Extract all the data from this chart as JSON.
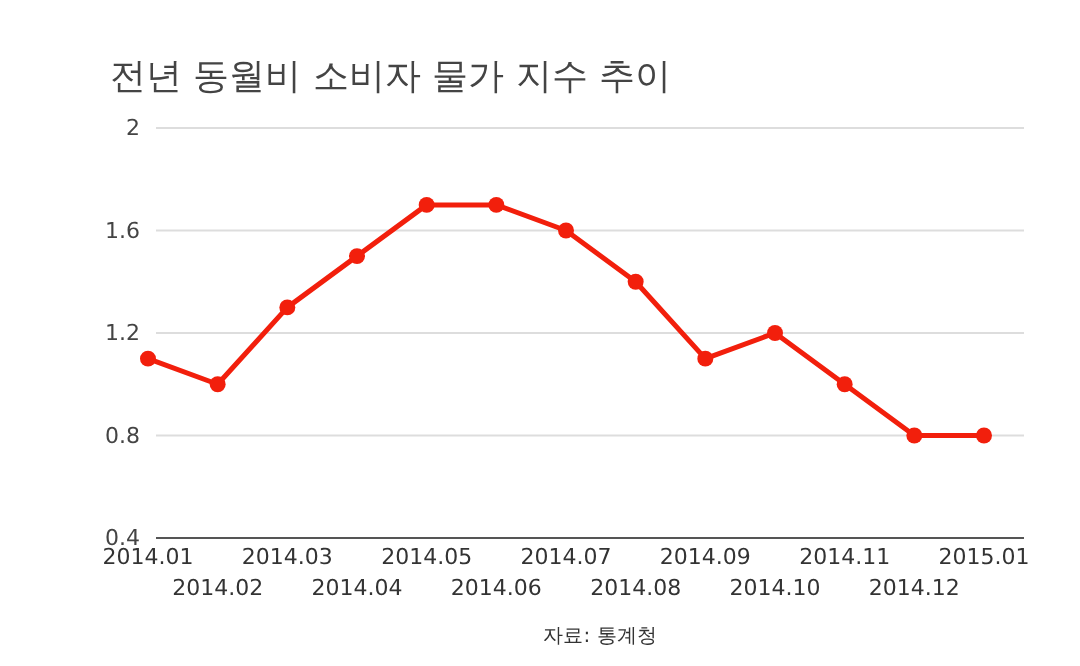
{
  "chart_data": {
    "type": "line",
    "title": "전년 동월비 소비자 물가 지수 추이",
    "categories": [
      "2014.01",
      "2014.02",
      "2014.03",
      "2014.04",
      "2014.05",
      "2014.06",
      "2014.07",
      "2014.08",
      "2014.09",
      "2014.10",
      "2014.11",
      "2014.12",
      "2015.01"
    ],
    "series": [
      {
        "color": "#f21f0c",
        "values": [
          1.1,
          1.0,
          1.3,
          1.5,
          1.7,
          1.7,
          1.6,
          1.4,
          1.1,
          1.2,
          1.0,
          0.8,
          0.8
        ]
      }
    ],
    "ylim": [
      0.4,
      2
    ],
    "yticks": [
      0.4,
      0.8,
      1.2,
      1.6,
      2
    ],
    "grid": "y",
    "marker": "circle",
    "line_style": "solid",
    "annotations": [
      "자료: 통계청"
    ]
  }
}
